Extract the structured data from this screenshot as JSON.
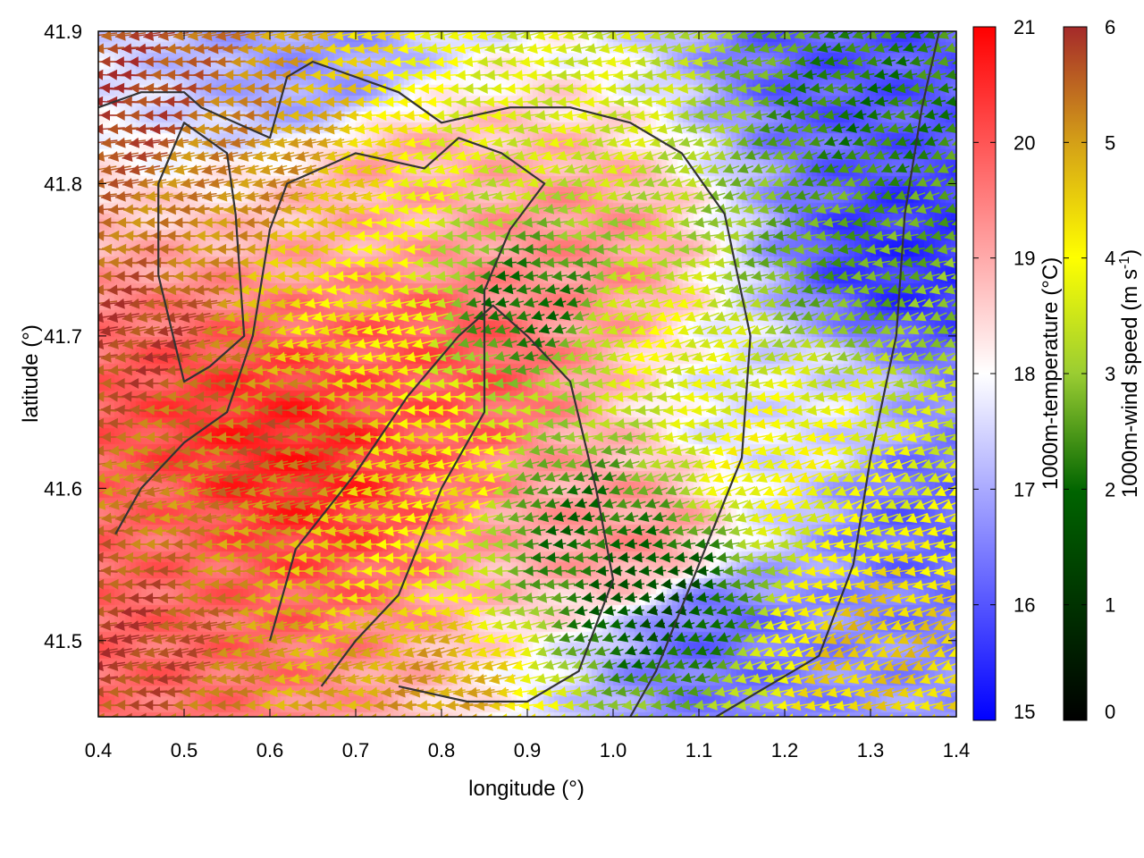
{
  "chart_data": {
    "type": "heatmap",
    "title": "",
    "xlabel": "longitude (°)",
    "ylabel": "latitude (°)",
    "xlim": [
      0.4,
      1.4
    ],
    "ylim": [
      41.45,
      41.9
    ],
    "xticks": [
      "0.4",
      "0.5",
      "0.6",
      "0.7",
      "0.8",
      "0.9",
      "1.0",
      "1.1",
      "1.2",
      "1.3",
      "1.4"
    ],
    "yticks": [
      "41.5",
      "41.6",
      "41.7",
      "41.8",
      "41.9"
    ],
    "grid": false,
    "legend": "none",
    "overlays": [
      "wind vectors",
      "terrain contours"
    ],
    "colorbars": [
      {
        "name": "temperature",
        "label": "1000m-temperature (°C)",
        "range": [
          15,
          21
        ],
        "ticks": [
          "15",
          "16",
          "17",
          "18",
          "19",
          "20",
          "21"
        ],
        "stops": [
          [
            "#0000ff",
            0
          ],
          [
            "#ffffff",
            0.5
          ],
          [
            "#ff0000",
            1
          ]
        ]
      },
      {
        "name": "wind-speed",
        "label_main": "1000m-wind speed (m s",
        "label_sup": "-1",
        "label_end": ")",
        "range": [
          0,
          6
        ],
        "ticks": [
          "0",
          "1",
          "2",
          "3",
          "4",
          "5",
          "6"
        ],
        "stops": [
          [
            "#000000",
            0
          ],
          [
            "#006400",
            0.33
          ],
          [
            "#9acd32",
            0.5
          ],
          [
            "#ffff00",
            0.667
          ],
          [
            "#d4a017",
            0.833
          ],
          [
            "#a52a2a",
            1
          ]
        ]
      }
    ],
    "temperature_field": {
      "description_units": "°C",
      "centers": [
        {
          "lon": 0.62,
          "lat": 41.62,
          "value": 20.6
        },
        {
          "lon": 0.45,
          "lat": 41.55,
          "value": 19.8
        },
        {
          "lon": 0.8,
          "lat": 41.68,
          "value": 20.0
        },
        {
          "lon": 1.02,
          "lat": 41.57,
          "value": 19.2
        },
        {
          "lon": 0.75,
          "lat": 41.8,
          "value": 19.0
        },
        {
          "lon": 0.95,
          "lat": 41.75,
          "value": 19.3
        },
        {
          "lon": 1.35,
          "lat": 41.75,
          "value": 15.6
        },
        {
          "lon": 1.3,
          "lat": 41.88,
          "value": 16.0
        },
        {
          "lon": 1.12,
          "lat": 41.5,
          "value": 16.3
        },
        {
          "lon": 1.38,
          "lat": 41.58,
          "value": 16.2
        },
        {
          "lon": 0.66,
          "lat": 41.88,
          "value": 16.8
        },
        {
          "lon": 1.2,
          "lat": 41.65,
          "value": 17.6
        }
      ],
      "background": 18.4
    },
    "wind_field": {
      "units": "m s-1",
      "speed_centers": [
        {
          "lon": 0.42,
          "lat": 41.85,
          "value": 5.9
        },
        {
          "lon": 0.45,
          "lat": 41.7,
          "value": 5.8
        },
        {
          "lon": 0.42,
          "lat": 41.5,
          "value": 5.8
        },
        {
          "lon": 0.55,
          "lat": 41.8,
          "value": 5.2
        },
        {
          "lon": 0.62,
          "lat": 41.63,
          "value": 5.5
        },
        {
          "lon": 0.7,
          "lat": 41.72,
          "value": 4.2
        },
        {
          "lon": 0.8,
          "lat": 41.6,
          "value": 4.3
        },
        {
          "lon": 0.9,
          "lat": 41.72,
          "value": 2.0
        },
        {
          "lon": 0.95,
          "lat": 41.58,
          "value": 2.0
        },
        {
          "lon": 1.05,
          "lat": 41.53,
          "value": 1.5
        },
        {
          "lon": 1.05,
          "lat": 41.7,
          "value": 3.8
        },
        {
          "lon": 1.18,
          "lat": 41.62,
          "value": 4.0
        },
        {
          "lon": 1.25,
          "lat": 41.75,
          "value": 2.6
        },
        {
          "lon": 1.3,
          "lat": 41.85,
          "value": 2.2
        },
        {
          "lon": 1.3,
          "lat": 41.5,
          "value": 4.6
        },
        {
          "lon": 0.95,
          "lat": 41.85,
          "value": 3.6
        },
        {
          "lon": 0.78,
          "lat": 41.47,
          "value": 5.0
        }
      ],
      "background": 3.8,
      "direction_note": "mostly from the east"
    },
    "contours": [
      [
        [
          0.4,
          41.85
        ],
        [
          0.45,
          41.86
        ],
        [
          0.5,
          41.86
        ],
        [
          0.52,
          41.85
        ],
        [
          0.56,
          41.84
        ],
        [
          0.6,
          41.83
        ],
        [
          0.62,
          41.87
        ],
        [
          0.65,
          41.88
        ],
        [
          0.7,
          41.87
        ],
        [
          0.75,
          41.86
        ],
        [
          0.8,
          41.84
        ],
        [
          0.88,
          41.85
        ],
        [
          0.95,
          41.85
        ],
        [
          1.02,
          41.84
        ],
        [
          1.08,
          41.82
        ],
        [
          1.13,
          41.78
        ],
        [
          1.16,
          41.7
        ],
        [
          1.15,
          41.62
        ],
        [
          1.1,
          41.55
        ],
        [
          1.05,
          41.48
        ],
        [
          1.02,
          41.45
        ]
      ],
      [
        [
          0.42,
          41.57
        ],
        [
          0.45,
          41.6
        ],
        [
          0.5,
          41.63
        ],
        [
          0.55,
          41.65
        ],
        [
          0.58,
          41.7
        ],
        [
          0.6,
          41.77
        ],
        [
          0.62,
          41.8
        ],
        [
          0.7,
          41.82
        ],
        [
          0.78,
          41.81
        ],
        [
          0.82,
          41.83
        ],
        [
          0.87,
          41.82
        ],
        [
          0.92,
          41.8
        ],
        [
          0.88,
          41.77
        ],
        [
          0.85,
          41.73
        ],
        [
          0.85,
          41.65
        ],
        [
          0.8,
          41.6
        ],
        [
          0.75,
          41.53
        ],
        [
          0.7,
          41.5
        ],
        [
          0.66,
          41.47
        ]
      ],
      [
        [
          0.47,
          41.74
        ],
        [
          0.5,
          41.67
        ],
        [
          0.53,
          41.68
        ],
        [
          0.57,
          41.7
        ],
        [
          0.56,
          41.78
        ],
        [
          0.55,
          41.82
        ],
        [
          0.5,
          41.84
        ],
        [
          0.47,
          41.8
        ],
        [
          0.47,
          41.74
        ]
      ],
      [
        [
          0.6,
          41.5
        ],
        [
          0.63,
          41.56
        ],
        [
          0.7,
          41.61
        ],
        [
          0.76,
          41.66
        ],
        [
          0.82,
          41.7
        ],
        [
          0.86,
          41.72
        ],
        [
          0.9,
          41.7
        ],
        [
          0.95,
          41.67
        ],
        [
          0.98,
          41.6
        ],
        [
          1.0,
          41.54
        ],
        [
          0.96,
          41.48
        ],
        [
          0.9,
          41.46
        ],
        [
          0.83,
          41.46
        ],
        [
          0.75,
          41.47
        ]
      ],
      [
        [
          1.12,
          41.45
        ],
        [
          1.18,
          41.47
        ],
        [
          1.24,
          41.49
        ],
        [
          1.28,
          41.55
        ],
        [
          1.3,
          41.62
        ],
        [
          1.33,
          41.7
        ],
        [
          1.34,
          41.78
        ],
        [
          1.36,
          41.85
        ],
        [
          1.38,
          41.9
        ]
      ]
    ]
  }
}
